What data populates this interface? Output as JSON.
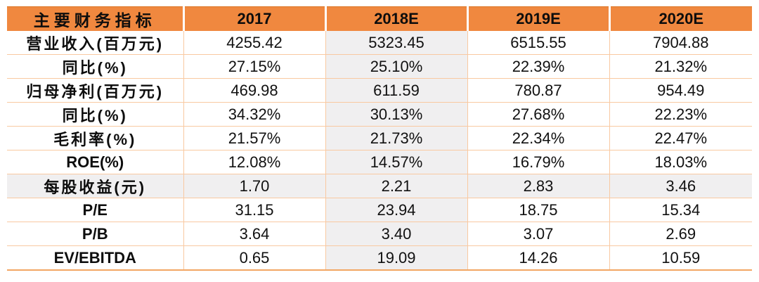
{
  "chart_data": {
    "type": "table",
    "title": "主要财务指标",
    "columns": [
      "主要财务指标",
      "2017",
      "2018E",
      "2019E",
      "2020E"
    ],
    "highlighted_column_index": 1,
    "rows": [
      {
        "label": "营业收入(百万元)",
        "values": [
          "4255.42",
          "5323.45",
          "6515.55",
          "7904.88"
        ]
      },
      {
        "label": "同比(%)",
        "values": [
          "27.15%",
          "25.10%",
          "22.39%",
          "21.32%"
        ]
      },
      {
        "label": "归母净利(百万元)",
        "values": [
          "469.98",
          "611.59",
          "780.87",
          "954.49"
        ]
      },
      {
        "label": "同比(%)",
        "values": [
          "34.32%",
          "30.13%",
          "27.68%",
          "22.23%"
        ]
      },
      {
        "label": "毛利率(%)",
        "values": [
          "21.57%",
          "21.73%",
          "22.34%",
          "22.47%"
        ]
      },
      {
        "label": "ROE(%)",
        "values": [
          "12.08%",
          "14.57%",
          "16.79%",
          "18.03%"
        ]
      },
      {
        "label": "每股收益(元)",
        "values": [
          "1.70",
          "2.21",
          "2.83",
          "3.46"
        ],
        "highlighted": true
      },
      {
        "label": "P/E",
        "values": [
          "31.15",
          "23.94",
          "18.75",
          "15.34"
        ]
      },
      {
        "label": "P/B",
        "values": [
          "3.64",
          "3.40",
          "3.07",
          "2.69"
        ]
      },
      {
        "label": "EV/EBITDA",
        "values": [
          "0.65",
          "19.09",
          "14.26",
          "10.59"
        ]
      }
    ]
  },
  "colors": {
    "header_bg": "#F0883F",
    "grid_line": "#F9C9A1",
    "highlight_bg": "#F0EFF0",
    "bottom_border": "#F2A663",
    "text": "#111111"
  }
}
